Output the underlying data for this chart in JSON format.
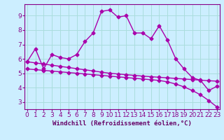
{
  "xlabel": "Windchill (Refroidissement éolien,°C)",
  "background_color": "#cceeff",
  "grid_color": "#aadddd",
  "line_color": "#aa00aa",
  "x_hours": [
    0,
    1,
    2,
    3,
    4,
    5,
    6,
    7,
    8,
    9,
    10,
    11,
    12,
    13,
    14,
    15,
    16,
    17,
    18,
    19,
    20,
    21,
    22,
    23
  ],
  "windchill": [
    5.8,
    6.7,
    5.3,
    6.3,
    6.1,
    6.0,
    6.3,
    7.2,
    7.8,
    9.3,
    9.4,
    8.9,
    9.0,
    7.8,
    7.8,
    7.4,
    8.3,
    7.3,
    6.0,
    5.3,
    4.7,
    4.5,
    3.8,
    4.1
  ],
  "trend_gentle": [
    5.8,
    5.72,
    5.64,
    5.56,
    5.48,
    5.4,
    5.32,
    5.24,
    5.16,
    5.08,
    5.0,
    4.95,
    4.9,
    4.85,
    4.8,
    4.76,
    4.72,
    4.68,
    4.64,
    4.6,
    4.56,
    4.52,
    4.48,
    4.45
  ],
  "trend_steep": [
    5.3,
    5.25,
    5.2,
    5.15,
    5.1,
    5.05,
    5.0,
    4.95,
    4.9,
    4.85,
    4.8,
    4.75,
    4.7,
    4.65,
    4.6,
    4.55,
    4.5,
    4.4,
    4.25,
    4.05,
    3.8,
    3.5,
    3.1,
    2.65
  ],
  "ylim": [
    2.5,
    9.8
  ],
  "xlim": [
    -0.3,
    23.3
  ],
  "yticks": [
    3,
    4,
    5,
    6,
    7,
    8,
    9
  ],
  "xticks": [
    0,
    1,
    2,
    3,
    4,
    5,
    6,
    7,
    8,
    9,
    10,
    11,
    12,
    13,
    14,
    15,
    16,
    17,
    18,
    19,
    20,
    21,
    22,
    23
  ],
  "tick_color": "#880088",
  "label_color": "#660066",
  "font_size_xlabel": 6.5,
  "font_size_ticks": 6.5,
  "marker": "D",
  "marker_size": 2.5,
  "line_width": 1.0
}
